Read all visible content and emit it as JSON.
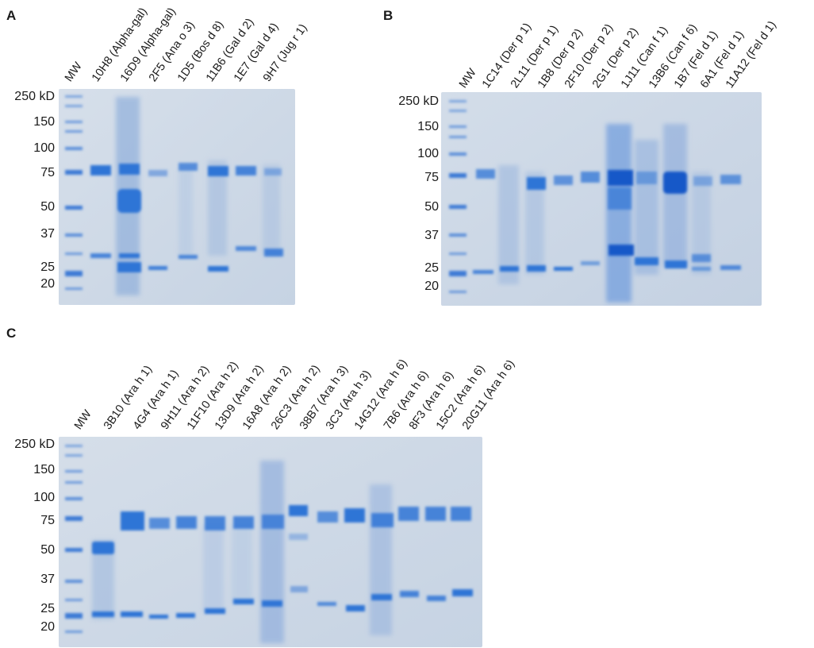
{
  "panels": [
    {
      "letter": "A",
      "markers": [
        "250 kD",
        "150",
        "100",
        "75",
        "50",
        "37",
        "25",
        "20"
      ],
      "lanes": [
        "MW",
        "10H8 (Alpha-gal)",
        "16D9 (Alpha-gal)",
        "2F5 (Ana o 3)",
        "1D5 (Bos d 8)",
        "11B6 (Gal d 2)",
        "1E7 (Gal d 4)",
        "9H7 (Jug r 1)"
      ]
    },
    {
      "letter": "B",
      "markers": [
        "250 kD",
        "150",
        "100",
        "75",
        "50",
        "37",
        "25",
        "20"
      ],
      "lanes": [
        "MW",
        "1C14 (Der p 1)",
        "2L11 (Der p 1)",
        "1B8 (Der p 2)",
        "2F10 (Der p 2)",
        "2G1 (Der p 2)",
        "1J11 (Can f 1)",
        "13B6 (Can f 6)",
        "1B7 (Fel d 1)",
        "6A1 (Fel d 1)",
        "11A12 (Fel d 1)"
      ]
    },
    {
      "letter": "C",
      "markers": [
        "250 kD",
        "150",
        "100",
        "75",
        "50",
        "37",
        "25",
        "20"
      ],
      "lanes": [
        "MW",
        "3B10 (Ara h 1)",
        "4G4 (Ara h 1)",
        "9H11 (Ara h 2)",
        "11F10 (Ara h 2)",
        "13D9 (Ara h 2)",
        "16A8 (Ara h 2)",
        "26C3 (Ara h 2)",
        "38B7 (Ara h 3)",
        "3C3 (Ara h 3)",
        "14G12 (Ara h 6)",
        "7B6 (Ara h 6)",
        "8F3 (Ara h 6)",
        "15C2 (Ara h 6)",
        "20G11 (Ara h 6)"
      ]
    }
  ],
  "colors": {
    "gel": "#cdd8e6",
    "band": "#2f74d6",
    "band_dark": "#1458c8"
  }
}
